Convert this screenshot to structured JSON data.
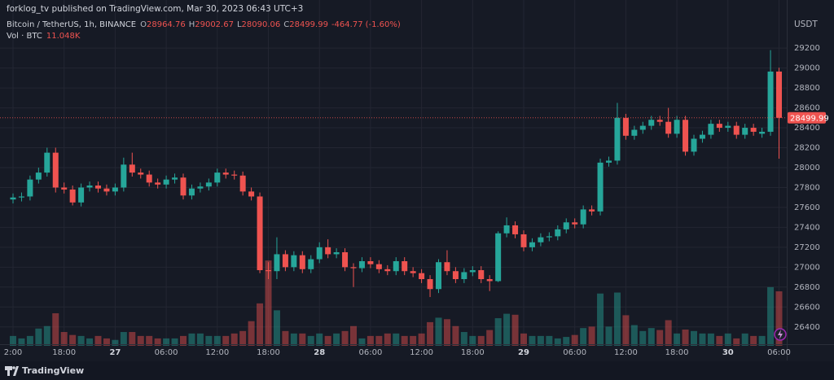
{
  "header": {
    "text": "forklog_tv published on TradingView.com, Mar 30, 2023 06:43 UTC+3"
  },
  "chart_data": {
    "type": "candlestick",
    "legend": {
      "symbol": "Bitcoin / TetherUS, 1h, BINANCE",
      "items": [
        {
          "key": "O",
          "value": 28964.76
        },
        {
          "key": "H",
          "value": 29002.67
        },
        {
          "key": "L",
          "value": 28090.06
        },
        {
          "key": "C",
          "value": 28499.99
        }
      ],
      "change": -464.77,
      "change_pct": "(-1.60%)"
    },
    "volume_label": "Vol · BTC",
    "volume_value_label": "11.048K",
    "y_unit": "USDT",
    "categories": [
      "2:00",
      null,
      null,
      null,
      null,
      null,
      "18:00",
      null,
      null,
      null,
      null,
      null,
      "27",
      null,
      null,
      null,
      null,
      null,
      "06:00",
      null,
      null,
      null,
      null,
      null,
      "12:00",
      null,
      null,
      null,
      null,
      null,
      "18:00",
      null,
      null,
      null,
      null,
      null,
      "28",
      null,
      null,
      null,
      null,
      null,
      "06:00",
      null,
      null,
      null,
      null,
      null,
      "12:00",
      null,
      null,
      null,
      null,
      null,
      "18:00",
      null,
      null,
      null,
      null,
      null,
      "29",
      null,
      null,
      null,
      null,
      null,
      "06:00",
      null,
      null,
      null,
      null,
      null,
      "12:00",
      null,
      null,
      null,
      null,
      null,
      "18:00",
      null,
      null,
      null,
      null,
      null,
      "30",
      null,
      null,
      null,
      null,
      null,
      "06:00"
    ],
    "open": [
      27680,
      27700,
      27710,
      27880,
      27950,
      28150,
      27800,
      27780,
      27650,
      27800,
      27820,
      27790,
      27760,
      27800,
      28030,
      27950,
      27930,
      27850,
      27830,
      27880,
      27900,
      27720,
      27790,
      27810,
      27850,
      27950,
      27930,
      27920,
      27760,
      27710,
      26970,
      26960,
      27130,
      27000,
      27120,
      26980,
      27080,
      27200,
      27130,
      27150,
      27000,
      26990,
      27060,
      27030,
      26980,
      26960,
      27060,
      26960,
      26940,
      26880,
      26780,
      27050,
      26960,
      26880,
      26950,
      26970,
      26880,
      26860,
      27340,
      27420,
      27330,
      27200,
      27250,
      27300,
      27310,
      27380,
      27450,
      27430,
      27580,
      27560,
      28050,
      28070,
      28500,
      28320,
      28380,
      28420,
      28480,
      28460,
      28340,
      28480,
      28160,
      28290,
      28330,
      28440,
      28400,
      28420,
      28330,
      28400,
      28340,
      28360,
      28964.76
    ],
    "high": [
      27740,
      27750,
      27920,
      28000,
      28200,
      28200,
      27850,
      27820,
      27840,
      27860,
      27860,
      27830,
      27840,
      28100,
      28150,
      27990,
      27970,
      27890,
      27920,
      27940,
      27940,
      27830,
      27850,
      27890,
      27990,
      27990,
      27970,
      27960,
      27800,
      27750,
      27050,
      27300,
      27170,
      27160,
      27160,
      27120,
      27250,
      27280,
      27190,
      27190,
      27040,
      27100,
      27100,
      27070,
      27020,
      27100,
      27100,
      27000,
      26980,
      26920,
      27080,
      27170,
      27000,
      26990,
      27010,
      27010,
      26920,
      27360,
      27500,
      27460,
      27370,
      27290,
      27340,
      27350,
      27420,
      27490,
      27490,
      27620,
      27620,
      28090,
      28110,
      28650,
      28540,
      28420,
      28460,
      28520,
      28520,
      28600,
      28520,
      28520,
      28330,
      28370,
      28480,
      28480,
      28460,
      28460,
      28440,
      28440,
      28400,
      29180,
      29002.67
    ],
    "low": [
      27640,
      27660,
      27670,
      27840,
      27910,
      27750,
      27740,
      27620,
      27610,
      27760,
      27750,
      27720,
      27720,
      27760,
      27910,
      27890,
      27810,
      27790,
      27790,
      27840,
      27680,
      27680,
      27750,
      27770,
      27810,
      27890,
      27880,
      27720,
      27670,
      26940,
      26880,
      26880,
      26960,
      26960,
      26940,
      26940,
      27040,
      27090,
      27090,
      26960,
      26800,
      26950,
      26990,
      26940,
      26920,
      26920,
      26920,
      26900,
      26840,
      26700,
      26740,
      26920,
      26840,
      26840,
      26910,
      26840,
      26760,
      26850,
      27300,
      27290,
      27160,
      27160,
      27210,
      27260,
      27270,
      27340,
      27390,
      27390,
      27520,
      27520,
      28010,
      28030,
      28280,
      28280,
      28340,
      28380,
      28420,
      28300,
      28300,
      28120,
      28120,
      28250,
      28290,
      28360,
      28360,
      28290,
      28290,
      28320,
      28300,
      28320,
      28090.06
    ],
    "close": [
      27700,
      27710,
      27880,
      27950,
      28150,
      27800,
      27780,
      27650,
      27800,
      27820,
      27790,
      27760,
      27800,
      28030,
      27950,
      27930,
      27850,
      27830,
      27880,
      27900,
      27720,
      27790,
      27810,
      27850,
      27950,
      27930,
      27920,
      27760,
      27710,
      26970,
      26960,
      27130,
      27000,
      27120,
      26980,
      27080,
      27200,
      27130,
      27150,
      27000,
      26990,
      27060,
      27030,
      26980,
      26960,
      27060,
      26960,
      26940,
      26880,
      26780,
      27050,
      26960,
      26880,
      26950,
      26970,
      26880,
      26860,
      27340,
      27420,
      27330,
      27200,
      27250,
      27300,
      27310,
      27380,
      27450,
      27430,
      27580,
      27560,
      28050,
      28070,
      28500,
      28320,
      28380,
      28420,
      28480,
      28460,
      28340,
      28480,
      28160,
      28290,
      28330,
      28440,
      28400,
      28420,
      28330,
      28400,
      28360,
      28360,
      28964.76,
      28499.99
    ],
    "volumes": [
      2000,
      1500,
      2000,
      3500,
      4000,
      6600,
      2800,
      2200,
      2000,
      1500,
      2000,
      1500,
      1200,
      2800,
      2800,
      2000,
      2000,
      1500,
      1500,
      1500,
      2000,
      2500,
      2500,
      2000,
      2000,
      2000,
      2500,
      3000,
      5000,
      8600,
      17300,
      7200,
      3000,
      2500,
      2500,
      2000,
      2500,
      2000,
      2500,
      3000,
      4000,
      1500,
      2000,
      2000,
      2500,
      2500,
      2000,
      2000,
      2500,
      4800,
      5700,
      5400,
      4000,
      2800,
      2000,
      2000,
      3200,
      5600,
      6500,
      6300,
      2500,
      2000,
      2000,
      2000,
      1500,
      1800,
      2200,
      3600,
      3900,
      10600,
      3900,
      10800,
      6200,
      4200,
      3000,
      3600,
      3200,
      5200,
      2500,
      3300,
      3000,
      2500,
      2500,
      2000,
      2500,
      1500,
      2500,
      2000,
      2000,
      11900,
      11048
    ],
    "volume_lim": [
      0,
      66800
    ],
    "ylim": [
      26210,
      29520
    ],
    "yticks": [
      26400,
      26600,
      26800,
      27000,
      27200,
      27400,
      27600,
      27800,
      28000,
      28200,
      28400,
      28600,
      28800,
      29000,
      29200
    ],
    "last_price": 28499.99,
    "up_color": "#26a69a",
    "down_color": "#ef5350",
    "grid": true
  },
  "footer": {
    "brand": "TradingView"
  }
}
